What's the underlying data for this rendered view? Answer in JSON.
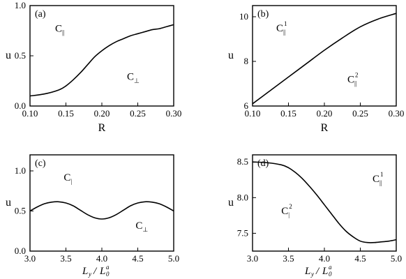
{
  "chart_data": [
    {
      "id": "a",
      "type": "line",
      "panel_label": "(a)",
      "xlabel": "R",
      "ylabel": "u",
      "xlim": [
        0.1,
        0.3
      ],
      "ylim": [
        0.0,
        1.0
      ],
      "xticks": [
        0.1,
        0.15,
        0.2,
        0.25,
        0.3
      ],
      "xtick_labels": [
        "0.10",
        "0.15",
        "0.20",
        "0.25",
        "0.30"
      ],
      "yticks": [
        0.0,
        0.5,
        1.0
      ],
      "ytick_labels": [
        "0.0",
        "0.5",
        "1.0"
      ],
      "x": [
        0.1,
        0.12,
        0.14,
        0.15,
        0.16,
        0.17,
        0.18,
        0.19,
        0.2,
        0.21,
        0.22,
        0.23,
        0.24,
        0.25,
        0.26,
        0.27,
        0.28,
        0.29,
        0.3
      ],
      "y": [
        0.1,
        0.12,
        0.16,
        0.2,
        0.26,
        0.33,
        0.41,
        0.49,
        0.55,
        0.6,
        0.64,
        0.67,
        0.7,
        0.72,
        0.74,
        0.76,
        0.77,
        0.79,
        0.81
      ],
      "region_labels": [
        {
          "main": "C",
          "sub": "||",
          "sup": "",
          "x": 0.135,
          "y": 0.74
        },
        {
          "main": "C",
          "sub": "⊥",
          "sup": "",
          "x": 0.235,
          "y": 0.26
        }
      ]
    },
    {
      "id": "b",
      "type": "line",
      "panel_label": "(b)",
      "xlabel": "R",
      "ylabel": "u",
      "xlim": [
        0.1,
        0.3
      ],
      "ylim": [
        6,
        10.5
      ],
      "xticks": [
        0.1,
        0.15,
        0.2,
        0.25,
        0.3
      ],
      "xtick_labels": [
        "0.10",
        "0.15",
        "0.20",
        "0.25",
        "0.30"
      ],
      "yticks": [
        6,
        8,
        10
      ],
      "ytick_labels": [
        "6",
        "8",
        "10"
      ],
      "x": [
        0.1,
        0.125,
        0.15,
        0.175,
        0.2,
        0.225,
        0.25,
        0.275,
        0.3
      ],
      "y": [
        6.1,
        6.7,
        7.3,
        7.9,
        8.5,
        9.05,
        9.55,
        9.9,
        10.15
      ],
      "region_labels": [
        {
          "main": "C",
          "sub": "||",
          "sup": "1",
          "x": 0.133,
          "y": 9.35
        },
        {
          "main": "C",
          "sub": "||",
          "sup": "2",
          "x": 0.232,
          "y": 7.05
        }
      ]
    },
    {
      "id": "c",
      "type": "line",
      "panel_label": "(c)",
      "xlabel_main": "L",
      "xlabel_main_sub": "y",
      "xlabel_sep": "/",
      "xlabel_denom": "L",
      "xlabel_denom_sub": "0",
      "xlabel_denom_sup": "a",
      "ylabel": "u",
      "xlim": [
        3.0,
        5.0
      ],
      "ylim": [
        0.0,
        1.2
      ],
      "xticks": [
        3.0,
        3.5,
        4.0,
        4.5,
        5.0
      ],
      "xtick_labels": [
        "3.0",
        "3.5",
        "4.0",
        "4.5",
        "5.0"
      ],
      "yticks": [
        0.0,
        0.5,
        1.0
      ],
      "ytick_labels": [
        "0.0",
        "0.5",
        "1.0"
      ],
      "x": [
        3.0,
        3.1,
        3.2,
        3.3,
        3.4,
        3.5,
        3.6,
        3.7,
        3.8,
        3.9,
        4.0,
        4.1,
        4.2,
        4.3,
        4.4,
        4.5,
        4.6,
        4.7,
        4.8,
        4.9,
        5.0
      ],
      "y": [
        0.5,
        0.55,
        0.59,
        0.61,
        0.615,
        0.6,
        0.565,
        0.51,
        0.455,
        0.415,
        0.4,
        0.415,
        0.455,
        0.51,
        0.565,
        0.6,
        0.615,
        0.61,
        0.59,
        0.55,
        0.5
      ],
      "region_labels": [
        {
          "main": "C",
          "sub": "|",
          "sup": "",
          "x": 3.47,
          "y": 0.88
        },
        {
          "main": "C",
          "sub": "⊥",
          "sup": "",
          "x": 4.47,
          "y": 0.28
        }
      ]
    },
    {
      "id": "d",
      "type": "line",
      "panel_label": "(d)",
      "xlabel_main": "L",
      "xlabel_main_sub": "y",
      "xlabel_sep": "/",
      "xlabel_denom": "L",
      "xlabel_denom_sub": "0",
      "xlabel_denom_sup": "a",
      "ylabel": "u",
      "xlim": [
        3.0,
        5.0
      ],
      "ylim": [
        7.25,
        8.6
      ],
      "xticks": [
        3.0,
        3.5,
        4.0,
        4.5,
        5.0
      ],
      "xtick_labels": [
        "3.0",
        "3.5",
        "4.0",
        "4.5",
        "5.0"
      ],
      "yticks": [
        7.5,
        8.0,
        8.5
      ],
      "ytick_labels": [
        "7.5",
        "8.0",
        "8.5"
      ],
      "x": [
        3.0,
        3.2,
        3.4,
        3.5,
        3.6,
        3.7,
        3.8,
        3.9,
        4.0,
        4.1,
        4.2,
        4.3,
        4.4,
        4.5,
        4.6,
        4.7,
        4.8,
        4.9,
        5.0
      ],
      "y": [
        8.5,
        8.49,
        8.46,
        8.42,
        8.35,
        8.26,
        8.15,
        8.03,
        7.9,
        7.77,
        7.64,
        7.53,
        7.45,
        7.39,
        7.37,
        7.37,
        7.38,
        7.39,
        7.41
      ],
      "region_labels": [
        {
          "main": "C",
          "sub": "||",
          "sup": "1",
          "x": 4.67,
          "y": 8.22
        },
        {
          "main": "C",
          "sub": "|",
          "sup": "2",
          "x": 3.4,
          "y": 7.77
        }
      ]
    }
  ]
}
